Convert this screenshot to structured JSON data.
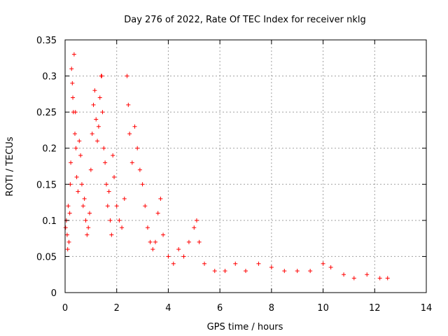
{
  "chart_data": {
    "type": "scatter",
    "title": "Day 276 of 2022, Rate Of TEC Index for receiver nklg",
    "xlabel": "GPS time / hours",
    "ylabel": "ROTI / TECUs",
    "xlim": [
      0,
      14
    ],
    "ylim": [
      0,
      0.35
    ],
    "x_ticks": [
      "0",
      "2",
      "4",
      "6",
      "8",
      "10",
      "12",
      "14"
    ],
    "y_ticks": [
      "0",
      "0.05",
      "0.1",
      "0.15",
      "0.2",
      "0.25",
      "0.3",
      "0.35"
    ],
    "grid": true,
    "marker": "plus",
    "color": "#ff0000",
    "series": [
      {
        "values_xy": [
          [
            0.02,
            0.09
          ],
          [
            0.05,
            0.1
          ],
          [
            0.08,
            0.08
          ],
          [
            0.1,
            0.06
          ],
          [
            0.12,
            0.12
          ],
          [
            0.15,
            0.07
          ],
          [
            0.18,
            0.11
          ],
          [
            0.2,
            0.15
          ],
          [
            0.22,
            0.18
          ],
          [
            0.25,
            0.31
          ],
          [
            0.28,
            0.29
          ],
          [
            0.3,
            0.27
          ],
          [
            0.32,
            0.25
          ],
          [
            0.35,
            0.33
          ],
          [
            0.38,
            0.22
          ],
          [
            0.4,
            0.25
          ],
          [
            0.42,
            0.2
          ],
          [
            0.45,
            0.16
          ],
          [
            0.5,
            0.14
          ],
          [
            0.55,
            0.21
          ],
          [
            0.6,
            0.19
          ],
          [
            0.65,
            0.15
          ],
          [
            0.7,
            0.12
          ],
          [
            0.75,
            0.13
          ],
          [
            0.8,
            0.1
          ],
          [
            0.85,
            0.08
          ],
          [
            0.9,
            0.09
          ],
          [
            0.95,
            0.11
          ],
          [
            1.0,
            0.17
          ],
          [
            1.05,
            0.22
          ],
          [
            1.1,
            0.26
          ],
          [
            1.15,
            0.28
          ],
          [
            1.2,
            0.24
          ],
          [
            1.25,
            0.21
          ],
          [
            1.3,
            0.23
          ],
          [
            1.35,
            0.27
          ],
          [
            1.4,
            0.3
          ],
          [
            1.42,
            0.3
          ],
          [
            1.45,
            0.25
          ],
          [
            1.5,
            0.2
          ],
          [
            1.55,
            0.18
          ],
          [
            1.6,
            0.15
          ],
          [
            1.65,
            0.12
          ],
          [
            1.7,
            0.14
          ],
          [
            1.75,
            0.1
          ],
          [
            1.8,
            0.08
          ],
          [
            1.85,
            0.19
          ],
          [
            1.9,
            0.16
          ],
          [
            2.0,
            0.12
          ],
          [
            2.1,
            0.1
          ],
          [
            2.2,
            0.09
          ],
          [
            2.3,
            0.13
          ],
          [
            2.4,
            0.3
          ],
          [
            2.45,
            0.26
          ],
          [
            2.5,
            0.22
          ],
          [
            2.6,
            0.18
          ],
          [
            2.7,
            0.23
          ],
          [
            2.8,
            0.2
          ],
          [
            2.9,
            0.17
          ],
          [
            3.0,
            0.15
          ],
          [
            3.1,
            0.12
          ],
          [
            3.2,
            0.09
          ],
          [
            3.3,
            0.07
          ],
          [
            3.4,
            0.06
          ],
          [
            3.5,
            0.07
          ],
          [
            3.6,
            0.11
          ],
          [
            3.7,
            0.13
          ],
          [
            3.8,
            0.08
          ],
          [
            4.0,
            0.05
          ],
          [
            4.2,
            0.04
          ],
          [
            4.4,
            0.06
          ],
          [
            4.6,
            0.05
          ],
          [
            4.8,
            0.07
          ],
          [
            5.0,
            0.09
          ],
          [
            5.1,
            0.1
          ],
          [
            5.2,
            0.07
          ],
          [
            5.4,
            0.04
          ],
          [
            5.8,
            0.03
          ],
          [
            6.2,
            0.03
          ],
          [
            6.6,
            0.04
          ],
          [
            7.0,
            0.03
          ],
          [
            7.5,
            0.04
          ],
          [
            8.0,
            0.035
          ],
          [
            8.5,
            0.03
          ],
          [
            9.0,
            0.03
          ],
          [
            9.5,
            0.03
          ],
          [
            10.0,
            0.04
          ],
          [
            10.3,
            0.035
          ],
          [
            10.8,
            0.025
          ],
          [
            11.2,
            0.02
          ],
          [
            11.7,
            0.025
          ],
          [
            12.2,
            0.02
          ],
          [
            12.5,
            0.02
          ]
        ]
      }
    ]
  }
}
